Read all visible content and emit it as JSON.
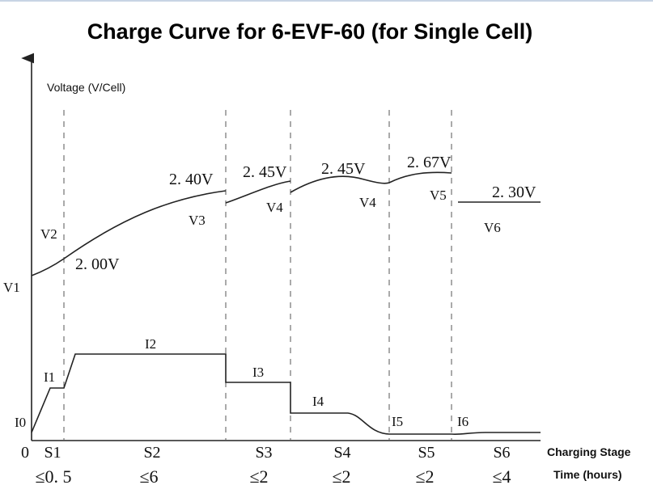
{
  "chart_data": {
    "type": "line",
    "title": "Charge Curve for 6-EVF-60 (for Single Cell)",
    "ylabel": "Voltage (V/Cell)",
    "origin_label": "0",
    "row_labels": {
      "stage": "Charging Stage",
      "time": "Time (hours)"
    },
    "stages": [
      {
        "name": "S1",
        "time": "≤0. 5"
      },
      {
        "name": "S2",
        "time": "≤6"
      },
      {
        "name": "S3",
        "time": "≤2"
      },
      {
        "name": "S4",
        "time": "≤2"
      },
      {
        "name": "S5",
        "time": "≤2"
      },
      {
        "name": "S6",
        "time": "≤4"
      }
    ],
    "voltage_labels": [
      "V1",
      "V2",
      "V3",
      "V4",
      "V4",
      "V5",
      "V6"
    ],
    "voltage_values": [
      "2. 00V",
      "2. 40V",
      "2. 45V",
      "2. 45V",
      "2. 67V",
      "2. 30V"
    ],
    "current_labels": [
      "I0",
      "I1",
      "I2",
      "I3",
      "I4",
      "I5",
      "I6"
    ],
    "colors": {
      "line": "#222222",
      "divider": "#555555",
      "axis": "#222222"
    }
  }
}
